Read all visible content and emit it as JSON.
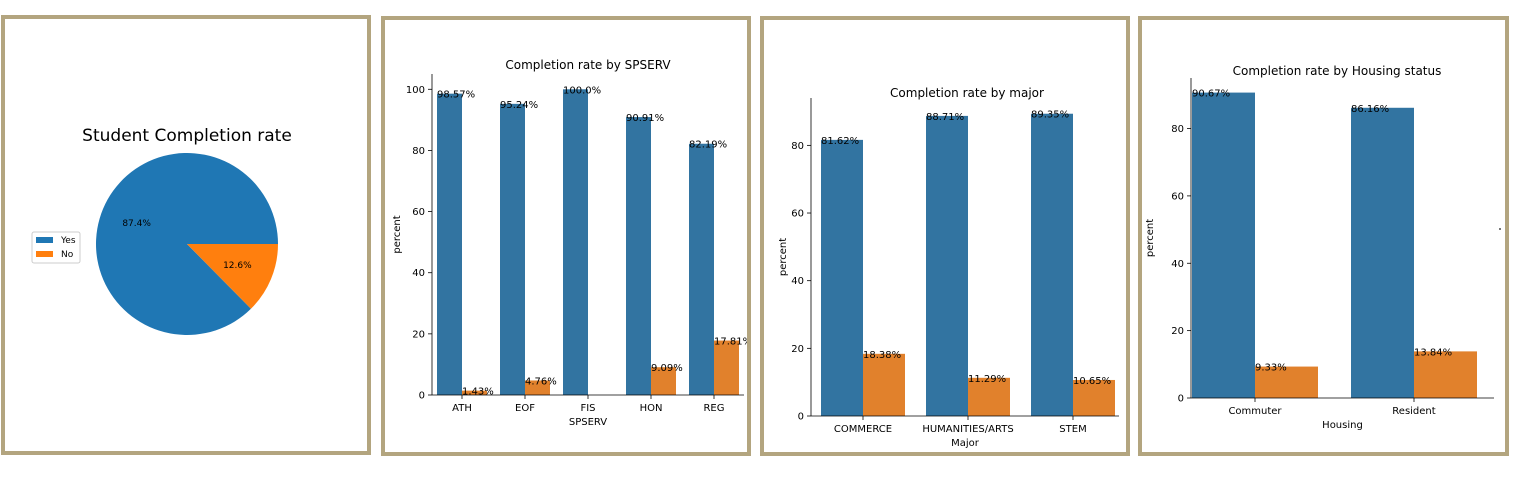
{
  "colors": {
    "border": "#b3a57f",
    "pie_yes": "#1f77b4",
    "pie_no": "#ff7f0e",
    "bar_yes": "#3274a1",
    "bar_no": "#e1812c"
  },
  "chart_data": [
    {
      "type": "pie",
      "title": "Student Completion rate",
      "slices": [
        {
          "label": "Yes",
          "value": 87.4,
          "display": "87.4%"
        },
        {
          "label": "No",
          "value": 12.6,
          "display": "12.6%"
        }
      ],
      "legend": {
        "placement": "center-left",
        "entries": [
          "Yes",
          "No"
        ]
      }
    },
    {
      "type": "bar",
      "title": "Completion rate by SPSERV",
      "xlabel": "SPSERV",
      "ylabel": "percent",
      "ylim": [
        0,
        105
      ],
      "yticks": [
        0,
        20,
        40,
        60,
        80,
        100
      ],
      "categories": [
        "ATH",
        "EOF",
        "FIS",
        "HON",
        "REG"
      ],
      "series": [
        {
          "values": [
            98.57,
            95.24,
            100.0,
            90.91,
            82.19
          ],
          "labels": [
            "98.57%",
            "95.24%",
            "100.0%",
            "90.91%",
            "82.19%"
          ]
        },
        {
          "values": [
            1.43,
            4.76,
            null,
            9.09,
            17.81
          ],
          "labels": [
            "1.43%",
            "4.76%",
            "",
            "9.09%",
            "17.81%"
          ]
        }
      ]
    },
    {
      "type": "bar",
      "title": "Completion rate by major",
      "xlabel": "Major",
      "ylabel": "percent",
      "ylim": [
        0,
        94
      ],
      "yticks": [
        0,
        20,
        40,
        60,
        80
      ],
      "categories": [
        "COMMERCE",
        "HUMANITIES/ARTS",
        "STEM"
      ],
      "series": [
        {
          "values": [
            81.62,
            88.71,
            89.35
          ],
          "labels": [
            "81.62%",
            "88.71%",
            "89.35%"
          ]
        },
        {
          "values": [
            18.38,
            11.29,
            10.65
          ],
          "labels": [
            "18.38%",
            "11.29%",
            "10.65%"
          ]
        }
      ]
    },
    {
      "type": "bar",
      "title": "Completion rate by Housing status",
      "xlabel": "Housing",
      "ylabel": "percent",
      "ylim": [
        0,
        95
      ],
      "yticks": [
        0,
        20,
        40,
        60,
        80
      ],
      "categories": [
        "Commuter",
        "Resident"
      ],
      "series": [
        {
          "values": [
            90.67,
            86.16
          ],
          "labels": [
            "90.67%",
            "86.16%"
          ]
        },
        {
          "values": [
            9.33,
            13.84
          ],
          "labels": [
            "9.33%",
            "13.84%"
          ]
        }
      ]
    }
  ]
}
